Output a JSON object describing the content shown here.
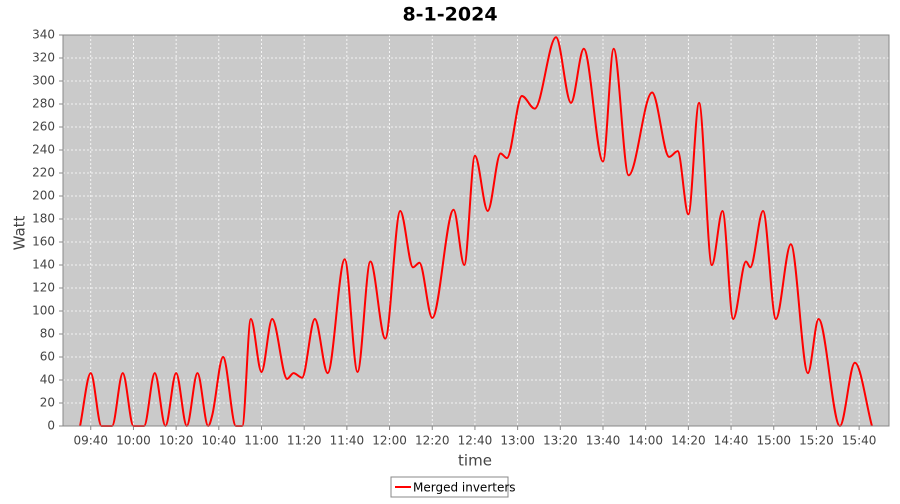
{
  "chart_data": {
    "type": "line",
    "title": "8-1-2024",
    "x_label": "time",
    "y_label": "Watt",
    "x": [
      "09:35",
      "09:40",
      "09:45",
      "09:50",
      "09:55",
      "10:00",
      "10:05",
      "10:10",
      "10:15",
      "10:20",
      "10:25",
      "10:30",
      "10:35",
      "10:37",
      "10:42",
      "10:48",
      "10:51",
      "10:55",
      "11:00",
      "11:05",
      "11:12",
      "11:15",
      "11:19",
      "11:25",
      "11:31",
      "11:39",
      "11:45",
      "11:51",
      "11:58",
      "12:05",
      "12:11",
      "12:14",
      "12:20",
      "12:30",
      "12:35",
      "12:40",
      "12:46",
      "12:52",
      "12:55",
      "13:02",
      "13:08",
      "13:18",
      "13:25",
      "13:31",
      "13:40",
      "13:45",
      "13:52",
      "14:03",
      "14:11",
      "14:15",
      "14:20",
      "14:25",
      "14:31",
      "14:36",
      "14:41",
      "14:47",
      "14:49",
      "14:55",
      "15:01",
      "15:08",
      "15:16",
      "15:21",
      "15:31",
      "15:38",
      "15:46"
    ],
    "series": [
      {
        "name": "Merged inverters",
        "color": "#ff0000",
        "values": [
          0,
          46,
          0,
          0,
          46,
          0,
          0,
          46,
          0,
          46,
          0,
          46,
          0,
          10,
          60,
          0,
          0,
          93,
          47,
          93,
          41,
          46,
          42,
          93,
          46,
          145,
          47,
          143,
          76,
          187,
          138,
          142,
          94,
          188,
          140,
          235,
          187,
          237,
          233,
          287,
          276,
          338,
          281,
          328,
          230,
          328,
          218,
          290,
          234,
          239,
          184,
          281,
          140,
          187,
          93,
          143,
          138,
          187,
          93,
          158,
          46,
          93,
          0,
          55,
          0
        ]
      }
    ],
    "xlim": [
      "09:27",
      "15:54"
    ],
    "xticks": [
      "09:40",
      "10:00",
      "10:20",
      "10:40",
      "11:00",
      "11:20",
      "11:40",
      "12:00",
      "12:20",
      "12:40",
      "13:00",
      "13:20",
      "13:40",
      "14:00",
      "14:20",
      "14:40",
      "15:00",
      "15:20",
      "15:40"
    ],
    "ylim": [
      0,
      340
    ],
    "yticks": [
      0,
      20,
      40,
      60,
      80,
      100,
      120,
      140,
      160,
      180,
      200,
      220,
      240,
      260,
      280,
      300,
      320,
      340
    ],
    "grid": true
  }
}
